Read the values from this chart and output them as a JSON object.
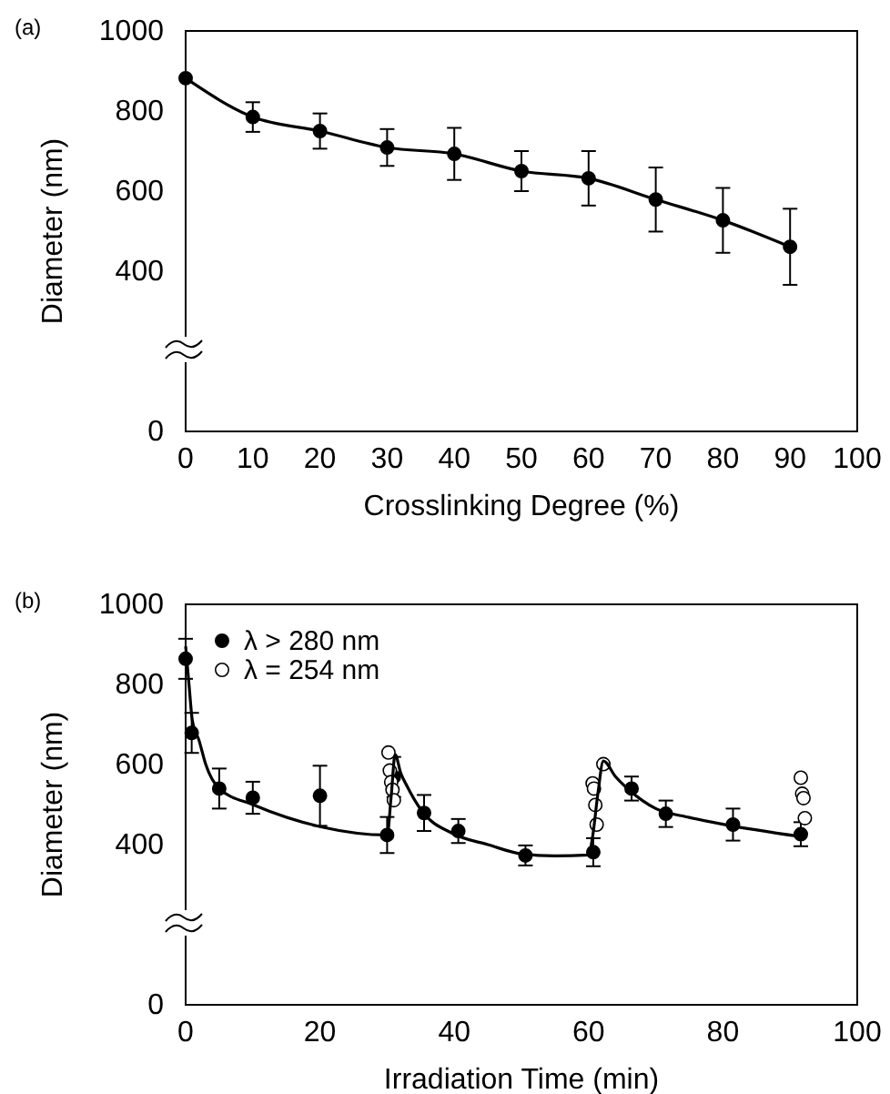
{
  "chart_data": [
    {
      "type": "line",
      "annotations": [
        "(a)"
      ],
      "xlabel": "Crosslinking Degree (%)",
      "ylabel": "Diameter (nm)",
      "xlim": [
        0,
        100
      ],
      "xticks": [
        0,
        10,
        20,
        30,
        40,
        50,
        60,
        70,
        80,
        90,
        100
      ],
      "ylim": [
        0,
        1000
      ],
      "yticks": [
        0,
        400,
        600,
        800,
        1000
      ],
      "marker": "circle",
      "line_style": "solid",
      "x": [
        0,
        10,
        20,
        30,
        40,
        50,
        60,
        70,
        80,
        90
      ],
      "series": [
        {
          "color": "#000000",
          "values": [
            882,
            785,
            750,
            709,
            693,
            650,
            632,
            579,
            527,
            461
          ],
          "errors": [
            null,
            37,
            44,
            46,
            65,
            50,
            68,
            80,
            81,
            95
          ]
        }
      ]
    },
    {
      "type": "scatter",
      "annotations": [
        "(b)"
      ],
      "xlabel": "Irradiation Time (min)",
      "ylabel": "Diameter (nm)",
      "xlim": [
        0,
        100
      ],
      "xticks": [
        0,
        20,
        40,
        60,
        80,
        100
      ],
      "ylim": [
        0,
        1000
      ],
      "yticks": [
        0,
        400,
        600,
        800,
        1000
      ],
      "marker": "circle",
      "legend": "top left",
      "series": [
        {
          "name": "λ > 280 nm",
          "color": "#000000",
          "x": [
            0,
            0.9,
            5,
            10,
            20,
            30,
            31,
            35.5,
            40.6,
            50.6,
            60.7,
            66.4,
            71.5,
            81.5,
            91.6
          ],
          "values": [
            864,
            679,
            540,
            517,
            522,
            424,
            569,
            479,
            434,
            373,
            381,
            540,
            477,
            450,
            426
          ],
          "errors": [
            50,
            50,
            50,
            40,
            75,
            45,
            50,
            45,
            30,
            25,
            35,
            30,
            33,
            40,
            30
          ]
        },
        {
          "name": "λ = 254 nm",
          "color": "#ffffff",
          "x": [
            30.2,
            30.4,
            30.6,
            30.8,
            31,
            60.6,
            60.8,
            61,
            61.2,
            62.2,
            91.6,
            91.8,
            92,
            92.2
          ],
          "values": [
            630,
            585,
            556,
            537,
            511,
            553,
            540,
            499,
            450,
            601,
            567,
            527,
            516,
            466
          ]
        },
        {
          "type": "line",
          "color": "#000000",
          "marker": "none",
          "x": [
            0,
            0.5,
            1,
            2,
            3,
            5,
            10,
            20,
            30,
            30.6,
            31.2,
            32,
            33,
            35,
            40,
            45,
            50,
            55,
            60,
            60.6,
            61.4,
            62.2,
            64,
            66,
            70,
            75,
            80,
            91.6
          ],
          "values": [
            895,
            800,
            710,
            660,
            600,
            540,
            500,
            445,
            424,
            520,
            625,
            580,
            545,
            488,
            426,
            400,
            377,
            372,
            374,
            420,
            530,
            609,
            570,
            537,
            490,
            468,
            451,
            420
          ]
        }
      ]
    }
  ]
}
